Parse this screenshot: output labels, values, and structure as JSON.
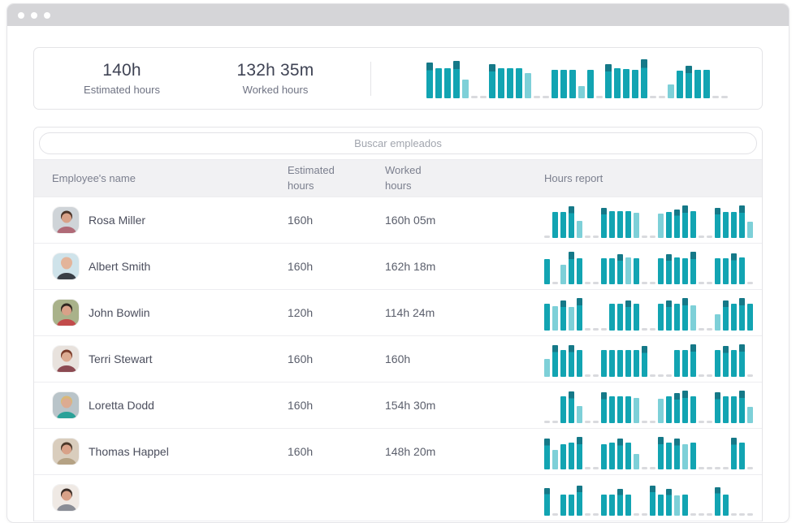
{
  "colors": {
    "bar": "#12a4b2",
    "bar_light": "#7ed0d8",
    "bar_over_cap": "#157988",
    "dash": "#d9dade"
  },
  "window": {
    "controls": [
      "dot",
      "dot",
      "dot"
    ]
  },
  "summary": {
    "estimated": {
      "value": "140h",
      "label": "Estimated hours"
    },
    "worked": {
      "value": "132h 35m",
      "label": "Worked hours"
    },
    "chart": [
      "o90",
      "n76",
      "n76",
      "o95",
      "l46",
      "d",
      "d",
      "o86",
      "n76",
      "n76",
      "n76",
      "l64",
      "d",
      "d",
      "n72",
      "n72",
      "n72",
      "l30",
      "n72",
      "d",
      "o86",
      "n76",
      "n74",
      "n72",
      "o100",
      "d",
      "d",
      "l34",
      "n70",
      "o82",
      "n72",
      "n72",
      "d",
      "d"
    ]
  },
  "search": {
    "placeholder": "Buscar empleados"
  },
  "table": {
    "columns": {
      "name": "Employee's name",
      "estimated": "Estimated hours",
      "worked": "Worked hours",
      "report": "Hours report"
    },
    "rows": [
      {
        "name": "Rosa Miller",
        "estimated": "160h",
        "worked": "160h 05m",
        "avatar": {
          "bg": "#cfd4d8",
          "hair": "#4a3328",
          "skin": "#d8a188",
          "shirt": "#b06a77"
        },
        "chart": [
          "d",
          "n72",
          "n72",
          "o88",
          "l48",
          "d",
          "d",
          "o84",
          "n74",
          "n74",
          "n74",
          "l70",
          "d",
          "d",
          "l68",
          "n72",
          "o80",
          "o90",
          "n74",
          "d",
          "d",
          "o84",
          "n72",
          "n72",
          "o90",
          "l46"
        ]
      },
      {
        "name": "Albert Smith",
        "estimated": "160h",
        "worked": "162h 18m",
        "avatar": {
          "bg": "#cfe3ea",
          "hair": "#e3b49a",
          "skin": "#e3b49a",
          "shirt": "#3a3f46"
        },
        "chart": [
          "n70",
          "d",
          "l55",
          "o92",
          "n72",
          "d",
          "d",
          "n72",
          "n72",
          "o84",
          "l74",
          "n72",
          "d",
          "d",
          "n72",
          "o84",
          "n74",
          "n72",
          "o92",
          "d",
          "d",
          "n72",
          "n72",
          "o86",
          "n74",
          "d"
        ]
      },
      {
        "name": "John Bowlin",
        "estimated": "120h",
        "worked": "114h 24m",
        "avatar": {
          "bg": "#a9b28a",
          "hair": "#2f2620",
          "skin": "#d8a188",
          "shirt": "#c24b4b"
        },
        "chart": [
          "n74",
          "l68",
          "o84",
          "l66",
          "o90",
          "d",
          "d",
          "d",
          "n74",
          "n74",
          "o84",
          "n76",
          "d",
          "d",
          "n74",
          "o84",
          "n76",
          "o90",
          "l70",
          "d",
          "d",
          "l46",
          "o84",
          "n74",
          "o90",
          "n76"
        ]
      },
      {
        "name": "Terri Stewart",
        "estimated": "160h",
        "worked": "160h",
        "avatar": {
          "bg": "#e8e2dd",
          "hair": "#7a3b2a",
          "skin": "#dcab92",
          "shirt": "#8c4a52"
        },
        "chart": [
          "l50",
          "o88",
          "n74",
          "o88",
          "n76",
          "d",
          "d",
          "n74",
          "n76",
          "n74",
          "n76",
          "n74",
          "o86",
          "d",
          "d",
          "d",
          "n74",
          "n74",
          "o92",
          "d",
          "d",
          "n74",
          "o86",
          "n74",
          "o92",
          "d"
        ]
      },
      {
        "name": "Loretta Dodd",
        "estimated": "160h",
        "worked": "154h 30m",
        "avatar": {
          "bg": "#b9c4c9",
          "hair": "#d9b877",
          "skin": "#dcab92",
          "shirt": "#2aa198"
        },
        "chart": [
          "d",
          "d",
          "n74",
          "o88",
          "l48",
          "d",
          "d",
          "o86",
          "n76",
          "n76",
          "n76",
          "l70",
          "d",
          "d",
          "l68",
          "n74",
          "o84",
          "o90",
          "n76",
          "d",
          "d",
          "o86",
          "n74",
          "n74",
          "o90",
          "l46"
        ]
      },
      {
        "name": "Thomas Happel",
        "estimated": "160h",
        "worked": "148h 20m",
        "avatar": {
          "bg": "#d9cdbd",
          "hair": "#4a382a",
          "skin": "#d8a188",
          "shirt": "#b5a284"
        },
        "chart": [
          "o86",
          "l54",
          "n70",
          "n74",
          "o90",
          "d",
          "d",
          "n70",
          "n74",
          "o86",
          "n74",
          "l44",
          "d",
          "d",
          "o90",
          "n74",
          "o86",
          "l70",
          "n74",
          "d",
          "d",
          "d",
          "d",
          "o88",
          "n76",
          "d"
        ]
      },
      {
        "name": "",
        "estimated": "",
        "worked": "",
        "avatar": {
          "bg": "#efe9e4",
          "hair": "#3a2c26",
          "skin": "#d8a188",
          "shirt": "#8a8d96"
        },
        "chart": [
          "o78",
          "d",
          "n58",
          "n58",
          "o84",
          "d",
          "d",
          "n60",
          "n60",
          "o76",
          "n60",
          "d",
          "d",
          "o84",
          "n60",
          "o74",
          "l56",
          "n60",
          "d",
          "d",
          "d",
          "o80",
          "n60",
          "d",
          "d",
          "d"
        ]
      }
    ]
  }
}
